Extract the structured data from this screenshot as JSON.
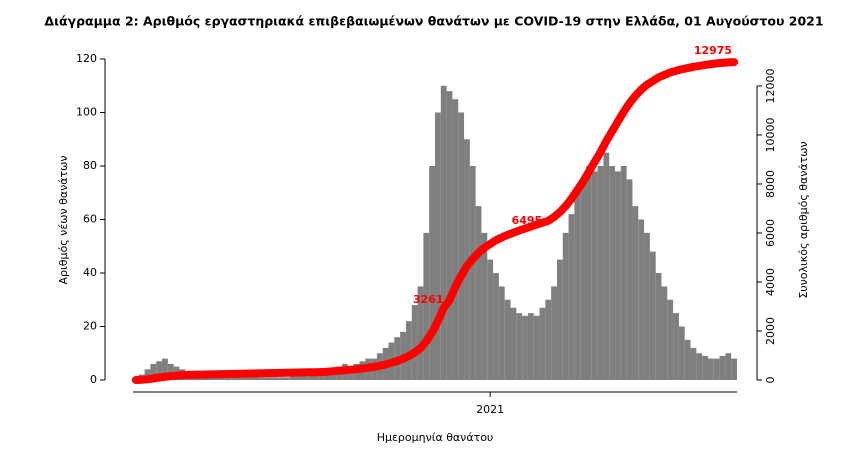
{
  "chart_data": {
    "type": "bar",
    "title": "Διάγραμμα 2: Αριθμός εργαστηριακά επιβεβαιωμένων θανάτων με COVID-19 στην Ελλάδα, 01 Αυγούστου 2021",
    "xlabel": "Ημερομηνία θανάτου",
    "ylabel": "Αριθμός νέων θανάτων",
    "y2label": "Συνολικός αριθμός θανάτων",
    "categories": [
      null,
      null,
      null,
      null,
      null,
      null,
      null,
      null,
      null,
      null,
      null,
      null,
      null,
      null,
      null,
      null,
      null,
      null,
      null,
      null,
      null,
      null,
      null,
      null,
      null,
      null,
      null,
      null,
      null,
      null,
      null,
      null,
      null,
      null,
      null,
      null,
      null,
      null,
      null,
      null,
      null,
      null,
      null,
      null,
      null,
      null,
      null,
      null,
      null,
      null,
      null,
      null,
      null,
      null,
      null,
      null,
      null,
      null,
      null,
      null,
      null,
      "2021",
      null,
      null,
      null,
      null,
      null,
      null,
      null,
      null,
      null,
      null,
      null,
      null,
      null,
      null,
      null,
      null,
      null,
      null,
      null,
      null,
      null,
      null,
      null,
      null,
      null,
      null,
      null,
      null,
      null,
      null,
      null,
      null,
      null,
      null,
      null,
      null,
      null,
      null,
      null,
      null,
      null,
      null
    ],
    "series": [
      {
        "type": "bar",
        "color": "#7f7f7f",
        "values": [
          1,
          2,
          4,
          6,
          7,
          8,
          6,
          5,
          4,
          3,
          3,
          2,
          2,
          1,
          1,
          1,
          1,
          1,
          1,
          1,
          1,
          1,
          1,
          1,
          1,
          1,
          1,
          2,
          2,
          2,
          2,
          2,
          3,
          3,
          4,
          5,
          6,
          5,
          6,
          7,
          8,
          8,
          10,
          12,
          14,
          16,
          18,
          22,
          28,
          35,
          55,
          80,
          100,
          110,
          108,
          105,
          100,
          90,
          80,
          65,
          55,
          45,
          40,
          35,
          30,
          27,
          25,
          24,
          25,
          24,
          27,
          30,
          35,
          45,
          55,
          62,
          70,
          75,
          80,
          78,
          80,
          85,
          80,
          78,
          80,
          75,
          65,
          60,
          55,
          48,
          40,
          35,
          30,
          25,
          20,
          15,
          12,
          10,
          9,
          8,
          8,
          9,
          10,
          8
        ]
      },
      {
        "type": "line",
        "axis": "y2",
        "color": "#ff0000",
        "values": [
          0,
          10,
          30,
          60,
          100,
          130,
          160,
          180,
          200,
          210,
          215,
          220,
          225,
          230,
          235,
          240,
          245,
          250,
          255,
          260,
          265,
          270,
          275,
          280,
          285,
          290,
          295,
          300,
          305,
          310,
          315,
          320,
          325,
          340,
          360,
          380,
          400,
          420,
          440,
          470,
          500,
          540,
          580,
          630,
          700,
          780,
          870,
          980,
          1120,
          1300,
          1580,
          1950,
          2400,
          2950,
          3261,
          3800,
          4250,
          4650,
          4950,
          5200,
          5400,
          5550,
          5700,
          5820,
          5920,
          6010,
          6100,
          6180,
          6260,
          6340,
          6420,
          6495,
          6650,
          6850,
          7100,
          7400,
          7750,
          8100,
          8500,
          8900,
          9300,
          9750,
          10150,
          10550,
          10950,
          11300,
          11600,
          11850,
          12050,
          12200,
          12350,
          12450,
          12550,
          12620,
          12680,
          12730,
          12780,
          12820,
          12860,
          12890,
          12920,
          12940,
          12960,
          12975
        ],
        "value_labels": [
          null,
          null,
          null,
          null,
          null,
          null,
          null,
          null,
          null,
          null,
          null,
          null,
          null,
          null,
          null,
          null,
          null,
          null,
          null,
          null,
          null,
          null,
          null,
          null,
          null,
          null,
          null,
          null,
          null,
          null,
          null,
          null,
          null,
          null,
          null,
          null,
          null,
          null,
          null,
          null,
          null,
          null,
          null,
          null,
          null,
          null,
          null,
          null,
          null,
          null,
          null,
          null,
          null,
          null,
          "3261",
          null,
          null,
          null,
          null,
          null,
          null,
          null,
          null,
          null,
          null,
          null,
          null,
          null,
          null,
          null,
          null,
          "6495",
          null,
          null,
          null,
          null,
          null,
          null,
          null,
          null,
          null,
          null,
          null,
          null,
          null,
          null,
          null,
          null,
          null,
          null,
          null,
          null,
          null,
          null,
          null,
          null,
          null,
          null,
          null,
          null,
          null,
          null,
          null,
          "12975"
        ]
      }
    ],
    "ylim": [
      0,
      120
    ],
    "yticks": [
      0,
      20,
      40,
      60,
      80,
      100,
      120
    ],
    "y2lim": [
      0,
      13100
    ],
    "y2ticks": [
      0,
      2000,
      4000,
      6000,
      8000,
      10000,
      12000
    ],
    "grid": false
  }
}
